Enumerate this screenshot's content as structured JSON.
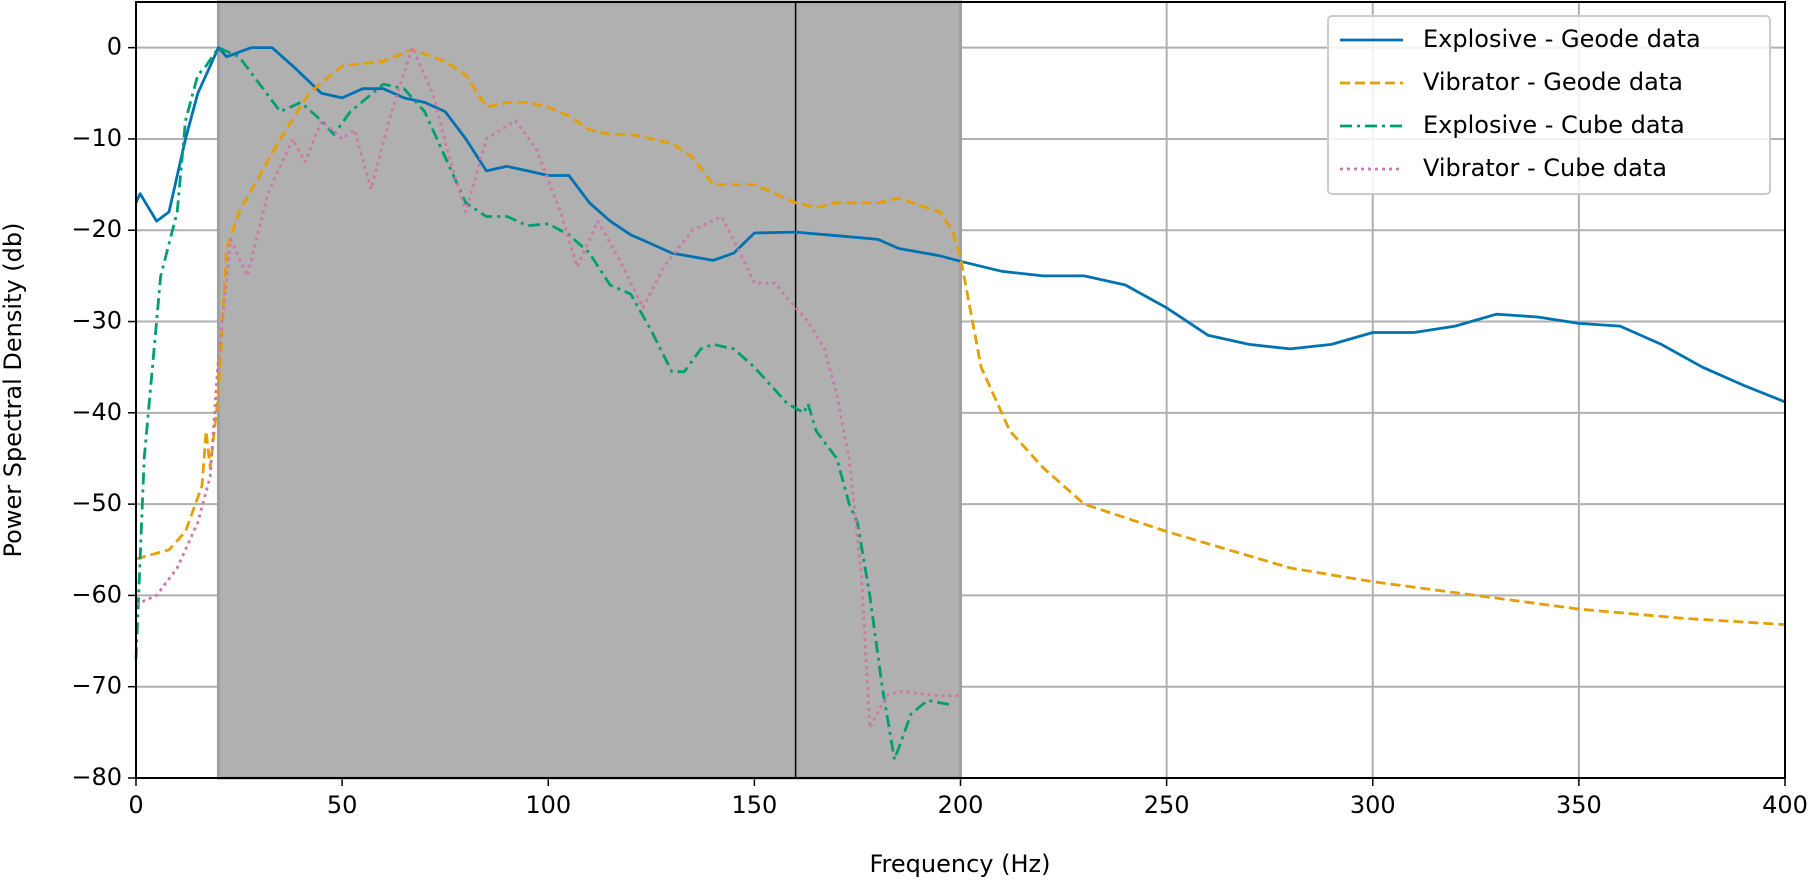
{
  "chart_data": {
    "type": "line",
    "xlabel": "Frequency (Hz)",
    "ylabel": "Power Spectral Density (db)",
    "xlim": [
      0,
      400
    ],
    "ylim": [
      -80,
      5
    ],
    "xticks": [
      0,
      50,
      100,
      150,
      200,
      250,
      300,
      350,
      400
    ],
    "yticks": [
      {
        "value": -80,
        "label": "−80"
      },
      {
        "value": -70,
        "label": "−70"
      },
      {
        "value": -60,
        "label": "−60"
      },
      {
        "value": -50,
        "label": "−50"
      },
      {
        "value": -40,
        "label": "−40"
      },
      {
        "value": -30,
        "label": "−30"
      },
      {
        "value": -20,
        "label": "−20"
      },
      {
        "value": -10,
        "label": "−10"
      },
      0
    ],
    "grid": true,
    "legend": "upper right",
    "shaded_span": [
      20,
      200
    ],
    "vline": 160,
    "series": [
      {
        "name": "Explosive - Geode data",
        "color": "#0072b2",
        "dash": "solid",
        "x": [
          0,
          1,
          5,
          8,
          12,
          15,
          18,
          20,
          22,
          28,
          33,
          38,
          45,
          50,
          55,
          60,
          65,
          70,
          75,
          80,
          85,
          90,
          95,
          100,
          105,
          110,
          115,
          120,
          125,
          130,
          140,
          145,
          150,
          160,
          170,
          180,
          185,
          195,
          200,
          210,
          220,
          230,
          240,
          250,
          260,
          270,
          280,
          290,
          300,
          310,
          320,
          330,
          340,
          350,
          360,
          370,
          380,
          390,
          400
        ],
        "values": [
          -17,
          -16,
          -19,
          -18,
          -10,
          -5,
          -2,
          0,
          -1,
          0,
          0,
          -2,
          -5,
          -5.5,
          -4.5,
          -4.5,
          -5.5,
          -6,
          -7,
          -10,
          -13.5,
          -13,
          -13.5,
          -14,
          -14,
          -17,
          -19,
          -20.5,
          -21.5,
          -22.5,
          -23.3,
          -22.5,
          -20.3,
          -20.2,
          -20.6,
          -21,
          -22,
          -22.8,
          -23.4,
          -24.5,
          -25,
          -25,
          -26,
          -28.5,
          -31.5,
          -32.5,
          -33,
          -32.5,
          -31.2,
          -31.2,
          -30.5,
          -29.2,
          -29.5,
          -30.2,
          -30.5,
          -32.5,
          -35,
          -37,
          -38.8
        ]
      },
      {
        "name": "Vibrator - Geode data",
        "color": "#e69f00",
        "dash": "dashed",
        "x": [
          0,
          8,
          12,
          16,
          17,
          18,
          20,
          22,
          25,
          35,
          42,
          50,
          60,
          67,
          75,
          80,
          85,
          90,
          95,
          100,
          105,
          110,
          115,
          120,
          130,
          135,
          140,
          150,
          160,
          165,
          170,
          180,
          185,
          195,
          198,
          200,
          205,
          212,
          220,
          230,
          250,
          265,
          280,
          300,
          325,
          350,
          375,
          400
        ],
        "values": [
          -56,
          -55,
          -53,
          -48,
          -42,
          -46,
          -38,
          -22,
          -18,
          -10,
          -5,
          -2,
          -1.5,
          -0.2,
          -1.5,
          -3,
          -6.5,
          -6,
          -6,
          -6.5,
          -7.5,
          -9,
          -9.5,
          -9.5,
          -10.5,
          -12,
          -15,
          -15,
          -17,
          -17.5,
          -17,
          -17,
          -16.5,
          -18,
          -20,
          -23,
          -35,
          -42,
          -46,
          -50,
          -53,
          -55,
          -57,
          -58.5,
          -60,
          -61.5,
          -62.5,
          -63.2
        ]
      },
      {
        "name": "Explosive - Cube data",
        "color": "#009e73",
        "dash": "dashdot",
        "x": [
          0,
          2,
          6,
          10,
          12,
          15,
          17,
          20,
          25,
          30,
          35,
          40,
          45,
          48,
          52,
          60,
          65,
          70,
          75,
          80,
          85,
          90,
          95,
          100,
          105,
          110,
          115,
          120,
          125,
          130,
          133,
          137,
          140,
          145,
          150,
          158,
          162,
          163,
          165,
          170,
          173,
          175,
          178,
          181,
          184,
          188,
          192,
          198
        ],
        "values": [
          -67,
          -45,
          -25,
          -18,
          -8,
          -3,
          -2,
          0,
          -1,
          -4,
          -7,
          -6,
          -8,
          -9.5,
          -7,
          -4,
          -4.5,
          -7,
          -12,
          -17,
          -18.5,
          -18.5,
          -19.5,
          -19.3,
          -20.5,
          -22.5,
          -26,
          -27,
          -31,
          -35.5,
          -35.5,
          -33,
          -32.5,
          -33,
          -35,
          -39,
          -40,
          -39,
          -42,
          -45,
          -50,
          -52,
          -60,
          -70,
          -78,
          -73,
          -71.5,
          -72
        ]
      },
      {
        "name": "Vibrator - Cube data",
        "color": "#cc79a7",
        "dash": "dotted",
        "x": [
          0,
          5,
          10,
          15,
          18,
          20,
          23,
          27,
          32,
          38,
          41,
          45,
          50,
          53,
          57,
          62,
          67,
          72,
          76,
          80,
          85,
          92,
          97,
          103,
          107,
          112,
          117,
          123,
          128,
          135,
          142,
          146,
          150,
          155,
          160,
          163,
          167,
          170,
          173,
          176,
          178,
          182,
          185,
          195,
          200
        ],
        "values": [
          -61,
          -60,
          -57,
          -52,
          -47,
          -34,
          -21,
          -25,
          -16,
          -10,
          -12.5,
          -8,
          -10,
          -9,
          -15.5,
          -7,
          0,
          -5,
          -12,
          -18,
          -10,
          -8,
          -11,
          -18,
          -24,
          -19,
          -23,
          -28.5,
          -24,
          -20,
          -18.5,
          -22,
          -25.8,
          -25.8,
          -28.5,
          -30,
          -33,
          -38,
          -45,
          -58,
          -74.5,
          -71,
          -70.5,
          -71,
          -71
        ]
      }
    ]
  }
}
